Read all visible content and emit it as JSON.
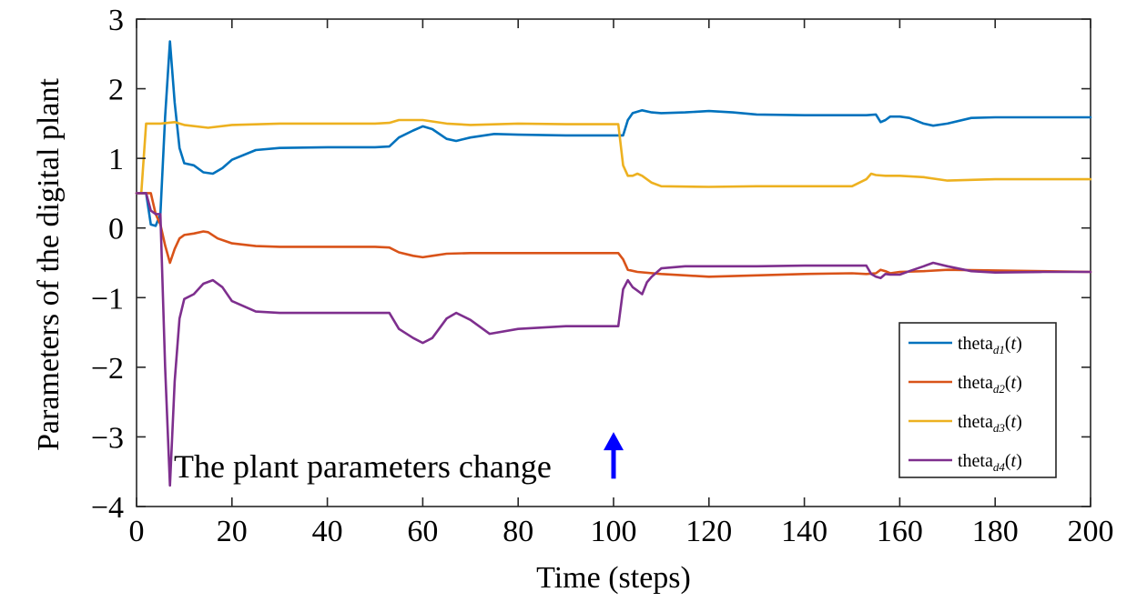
{
  "chart_data": {
    "type": "line",
    "title": "",
    "xlabel": "Time (steps)",
    "ylabel": "Parameters of the digital plant",
    "xlim": [
      0,
      200
    ],
    "ylim": [
      -4,
      3
    ],
    "xticks": [
      0,
      20,
      40,
      60,
      80,
      100,
      120,
      140,
      160,
      180,
      200
    ],
    "yticks": [
      3,
      2,
      1,
      0,
      -1,
      -2,
      -3,
      -4
    ],
    "xtick_labels": [
      "0",
      "20",
      "40",
      "60",
      "80",
      "100",
      "120",
      "140",
      "160",
      "180",
      "200"
    ],
    "ytick_labels": [
      "3",
      "2",
      "1",
      "0",
      "−1",
      "−2",
      "−3",
      "−4"
    ],
    "grid": false,
    "legend_position": "bottom-right",
    "series": [
      {
        "name": "theta_d1(t)",
        "label_base": "theta",
        "label_sub": "d1",
        "label_arg": "t",
        "color": "#0072BD",
        "x": [
          0,
          2,
          3,
          4,
          5,
          6,
          7,
          8,
          9,
          10,
          12,
          14,
          16,
          18,
          20,
          25,
          30,
          40,
          50,
          53,
          55,
          58,
          60,
          62,
          65,
          67,
          70,
          75,
          80,
          90,
          100,
          102,
          103,
          104,
          106,
          108,
          110,
          115,
          120,
          125,
          130,
          140,
          150,
          153,
          155,
          156,
          157,
          158,
          160,
          162,
          165,
          167,
          170,
          175,
          180,
          190,
          200
        ],
        "y": [
          0.5,
          0.5,
          0.05,
          0.03,
          0.2,
          1.6,
          2.68,
          1.8,
          1.15,
          0.93,
          0.9,
          0.8,
          0.78,
          0.86,
          0.98,
          1.12,
          1.15,
          1.16,
          1.16,
          1.17,
          1.3,
          1.4,
          1.46,
          1.42,
          1.28,
          1.25,
          1.3,
          1.35,
          1.34,
          1.33,
          1.33,
          1.33,
          1.55,
          1.65,
          1.69,
          1.66,
          1.65,
          1.66,
          1.68,
          1.66,
          1.63,
          1.62,
          1.62,
          1.62,
          1.63,
          1.52,
          1.55,
          1.6,
          1.6,
          1.58,
          1.5,
          1.47,
          1.5,
          1.58,
          1.59,
          1.59,
          1.59
        ]
      },
      {
        "name": "theta_d2(t)",
        "label_base": "theta",
        "label_sub": "d2",
        "label_arg": "t",
        "color": "#D95319",
        "x": [
          0,
          3,
          4,
          5,
          6,
          7,
          8,
          9,
          10,
          12,
          14,
          15,
          17,
          20,
          25,
          30,
          40,
          50,
          53,
          55,
          58,
          60,
          62,
          65,
          70,
          80,
          90,
          100,
          101,
          102,
          103,
          105,
          110,
          115,
          120,
          130,
          140,
          150,
          153,
          155,
          156,
          157,
          158,
          160,
          165,
          170,
          180,
          190,
          200
        ],
        "y": [
          0.5,
          0.5,
          0.2,
          0.05,
          -0.25,
          -0.5,
          -0.3,
          -0.15,
          -0.1,
          -0.08,
          -0.05,
          -0.06,
          -0.15,
          -0.22,
          -0.26,
          -0.27,
          -0.27,
          -0.27,
          -0.28,
          -0.35,
          -0.4,
          -0.42,
          -0.4,
          -0.37,
          -0.36,
          -0.36,
          -0.36,
          -0.36,
          -0.36,
          -0.45,
          -0.6,
          -0.63,
          -0.66,
          -0.68,
          -0.7,
          -0.68,
          -0.66,
          -0.65,
          -0.66,
          -0.65,
          -0.6,
          -0.62,
          -0.65,
          -0.63,
          -0.62,
          -0.6,
          -0.61,
          -0.62,
          -0.63
        ]
      },
      {
        "name": "theta_d3(t)",
        "label_base": "theta",
        "label_sub": "d3",
        "label_arg": "t",
        "color": "#EDB120",
        "x": [
          0,
          1,
          2,
          5,
          8,
          10,
          15,
          20,
          30,
          50,
          53,
          55,
          60,
          65,
          70,
          80,
          90,
          100,
          101,
          102,
          103,
          104,
          105,
          106,
          108,
          110,
          120,
          130,
          150,
          153,
          154,
          155,
          157,
          160,
          165,
          170,
          180,
          190,
          200
        ],
        "y": [
          0.5,
          0.5,
          1.5,
          1.5,
          1.52,
          1.48,
          1.44,
          1.48,
          1.5,
          1.5,
          1.51,
          1.55,
          1.55,
          1.5,
          1.48,
          1.5,
          1.49,
          1.49,
          1.49,
          0.9,
          0.75,
          0.75,
          0.78,
          0.75,
          0.65,
          0.6,
          0.59,
          0.6,
          0.6,
          0.7,
          0.78,
          0.76,
          0.75,
          0.75,
          0.73,
          0.68,
          0.7,
          0.7,
          0.7
        ]
      },
      {
        "name": "theta_d4(t)",
        "label_base": "theta",
        "label_sub": "d4",
        "label_arg": "t",
        "color": "#7E2F8E",
        "x": [
          0,
          2,
          3,
          4,
          5,
          6,
          7,
          8,
          9,
          10,
          12,
          14,
          16,
          18,
          20,
          25,
          30,
          40,
          50,
          53,
          55,
          58,
          60,
          62,
          65,
          67,
          70,
          74,
          80,
          90,
          100,
          101,
          102,
          103,
          104,
          105,
          106,
          107,
          108,
          110,
          115,
          120,
          130,
          140,
          150,
          153,
          154,
          155,
          156,
          157,
          158,
          160,
          162,
          165,
          167,
          170,
          175,
          180,
          190,
          200
        ],
        "y": [
          0.5,
          0.5,
          0.25,
          0.2,
          0.2,
          -2.0,
          -3.7,
          -2.2,
          -1.3,
          -1.02,
          -0.95,
          -0.8,
          -0.75,
          -0.85,
          -1.05,
          -1.2,
          -1.22,
          -1.22,
          -1.22,
          -1.22,
          -1.45,
          -1.58,
          -1.65,
          -1.58,
          -1.3,
          -1.22,
          -1.32,
          -1.52,
          -1.45,
          -1.41,
          -1.41,
          -1.41,
          -0.88,
          -0.75,
          -0.85,
          -0.9,
          -0.95,
          -0.78,
          -0.7,
          -0.58,
          -0.55,
          -0.55,
          -0.55,
          -0.54,
          -0.54,
          -0.54,
          -0.66,
          -0.7,
          -0.72,
          -0.66,
          -0.67,
          -0.67,
          -0.62,
          -0.55,
          -0.5,
          -0.55,
          -0.62,
          -0.64,
          -0.63,
          -0.63
        ]
      }
    ],
    "annotation": {
      "text": "The plant parameters change",
      "arrow_x": 100,
      "arrow_y_from": -3.6,
      "arrow_y_to": -2.93,
      "arrow_color": "#0000FF"
    }
  }
}
